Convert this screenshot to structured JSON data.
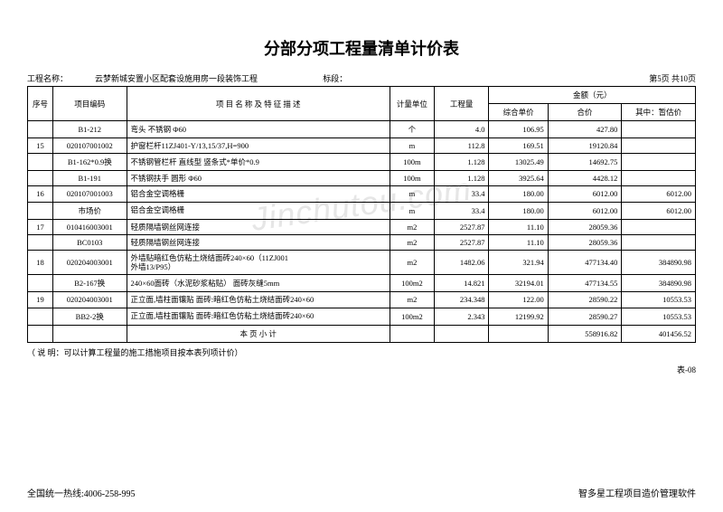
{
  "title": "分部分项工程量清单计价表",
  "project_label": "工程名称：",
  "project_name": "云梦新城安置小区配套设施用房一段装饰工程",
  "section_label": "标段：",
  "page_info": "第5页  共10页",
  "watermark": "Jinchutou.com",
  "cols": {
    "seq": "序号",
    "code": "项目编码",
    "desc": "项 目 名 称 及 特 征 描 述",
    "unit": "计量单位",
    "qty": "工程量",
    "amount": "金额（元）",
    "unit_price": "综合单价",
    "total": "合价",
    "est": "其中：暂估价"
  },
  "rows": [
    {
      "seq": "",
      "code": "B1-212",
      "desc": "弯头 不锈钢 Φ60",
      "unit": "个",
      "qty": "4.0",
      "up": "106.95",
      "tot": "427.80",
      "est": ""
    },
    {
      "seq": "15",
      "code": "020107001002",
      "desc": "护窗栏杆11ZJ401-Y/13,15/37,H=900",
      "unit": "m",
      "qty": "112.8",
      "up": "169.51",
      "tot": "19120.84",
      "est": ""
    },
    {
      "seq": "",
      "code": "B1-162*0.9换",
      "desc": "不锈钢管栏杆 直线型 竖条式*单价*0.9",
      "unit": "100m",
      "qty": "1.128",
      "up": "13025.49",
      "tot": "14692.75",
      "est": ""
    },
    {
      "seq": "",
      "code": "B1-191",
      "desc": "不锈钢扶手 圆形 Φ60",
      "unit": "100m",
      "qty": "1.128",
      "up": "3925.64",
      "tot": "4428.12",
      "est": ""
    },
    {
      "seq": "16",
      "code": "020107001003",
      "desc": "铝合金空调格栅",
      "unit": "m",
      "qty": "33.4",
      "up": "180.00",
      "tot": "6012.00",
      "est": "6012.00"
    },
    {
      "seq": "",
      "code": "市场价",
      "desc": "铝合金空调格栅",
      "unit": "m",
      "qty": "33.4",
      "up": "180.00",
      "tot": "6012.00",
      "est": "6012.00"
    },
    {
      "seq": "17",
      "code": "010416003001",
      "desc": "轻质隔墙钢丝网连接",
      "unit": "m2",
      "qty": "2527.87",
      "up": "11.10",
      "tot": "28059.36",
      "est": ""
    },
    {
      "seq": "",
      "code": "BC0103",
      "desc": "轻质隔墙钢丝网连接",
      "unit": "m2",
      "qty": "2527.87",
      "up": "11.10",
      "tot": "28059.36",
      "est": ""
    },
    {
      "seq": "18",
      "code": "020204003001",
      "desc": "外墙贴暗红色仿粘土烧结面砖240×60（11ZJ001\n外墙13/P95）",
      "unit": "m2",
      "qty": "1482.06",
      "up": "321.94",
      "tot": "477134.40",
      "est": "384890.98"
    },
    {
      "seq": "",
      "code": "B2-167换",
      "desc": "240×60面砖（水泥砂浆粘贴） 面砖灰缝5mm",
      "unit": "100m2",
      "qty": "14.821",
      "up": "32194.01",
      "tot": "477134.55",
      "est": "384890.98"
    },
    {
      "seq": "19",
      "code": "020204003001",
      "desc": "正立面,墙柱面镶贴  面砖:暗红色仿粘土烧结面砖240×60",
      "unit": "m2",
      "qty": "234.348",
      "up": "122.00",
      "tot": "28590.22",
      "est": "10553.53"
    },
    {
      "seq": "",
      "code": "BB2-2换",
      "desc": "正立面,墙柱面镶贴  面砖:暗红色仿粘土烧结面砖240×60",
      "unit": "100m2",
      "qty": "2.343",
      "up": "12199.92",
      "tot": "28590.27",
      "est": "10553.53"
    },
    {
      "seq": "",
      "code": "",
      "desc": "本 页 小 计",
      "unit": "",
      "qty": "",
      "up": "",
      "tot": "558916.82",
      "est": "401456.52"
    }
  ],
  "note": "（ 说 明：可以计算工程量的施工措施项目按本表列项计价）",
  "table_code": "表-08",
  "hotline_label": "全国统一热线:",
  "hotline": "4006-258-995",
  "software": "智多星工程项目造价管理软件"
}
